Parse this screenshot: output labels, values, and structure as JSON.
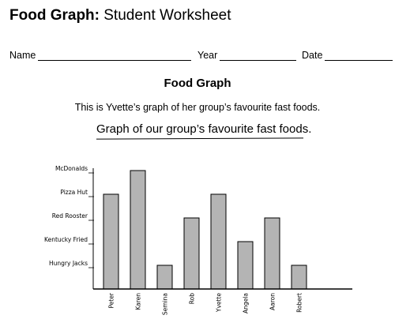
{
  "header": {
    "title_bold": "Food Graph:",
    "title_rest": " Student Worksheet"
  },
  "fields": {
    "name": "Name",
    "year": "Year",
    "date": "Date"
  },
  "section": {
    "heading": "Food Graph",
    "intro": "This is Yvette’s graph of her group’s favourite fast foods."
  },
  "chart_data": {
    "type": "bar",
    "title": "Graph of our group’s favourite fast foods.",
    "categories": [
      "Peter",
      "Karen",
      "Semina",
      "Rob",
      "Yvette",
      "Angela",
      "Aaron",
      "Robert"
    ],
    "y_categories": [
      "Hungry Jacks",
      "Kentucky Fried",
      "Red Rooster",
      "Pizza Hut",
      "McDonalds"
    ],
    "values": [
      4,
      5,
      1,
      3,
      4,
      2,
      3,
      1
    ],
    "bar_color": "#b4b4b4",
    "grid": false
  }
}
